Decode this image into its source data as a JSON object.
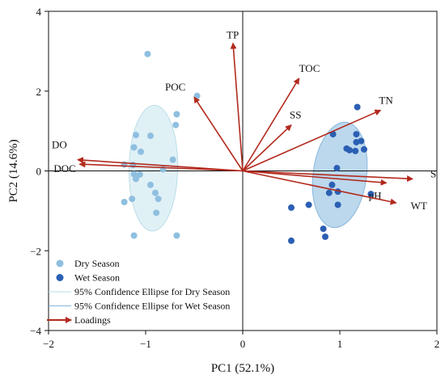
{
  "chart_data": {
    "type": "scatter",
    "xlabel": "PC1 (52.1%)",
    "ylabel": "PC2 (14.6%)",
    "xlim": [
      -2,
      2
    ],
    "ylim": [
      -4,
      4
    ],
    "xticks": [
      -2,
      -1,
      0,
      1,
      2
    ],
    "yticks": [
      -4,
      -2,
      0,
      2,
      4
    ],
    "xtick_labels": [
      "−2",
      "−1",
      "0",
      "1",
      "2"
    ],
    "ytick_labels": [
      "−4",
      "−2",
      "0",
      "2",
      "4"
    ],
    "grid": false,
    "legend_position": "bottom-left",
    "series": [
      {
        "name": "Dry Season",
        "color": "#8fbfe0",
        "points": [
          [
            -0.98,
            2.93
          ],
          [
            -0.47,
            1.88
          ],
          [
            -0.68,
            1.42
          ],
          [
            -0.69,
            1.15
          ],
          [
            -1.1,
            0.9
          ],
          [
            -0.95,
            0.88
          ],
          [
            -1.12,
            0.59
          ],
          [
            -1.05,
            0.48
          ],
          [
            -0.72,
            0.28
          ],
          [
            -1.22,
            0.16
          ],
          [
            -1.13,
            0.15
          ],
          [
            -0.82,
            0.04
          ],
          [
            -1.12,
            -0.08
          ],
          [
            -1.06,
            -0.09
          ],
          [
            -1.1,
            -0.2
          ],
          [
            -0.95,
            -0.35
          ],
          [
            -0.9,
            -0.55
          ],
          [
            -1.14,
            -0.7
          ],
          [
            -0.87,
            -0.7
          ],
          [
            -1.22,
            -0.78
          ],
          [
            -0.89,
            -1.05
          ],
          [
            -1.12,
            -1.62
          ],
          [
            -0.68,
            -1.62
          ]
        ]
      },
      {
        "name": "Wet Season",
        "color": "#2b5fb3",
        "points": [
          [
            1.18,
            1.6
          ],
          [
            1.17,
            0.92
          ],
          [
            0.93,
            0.92
          ],
          [
            1.22,
            0.75
          ],
          [
            1.17,
            0.72
          ],
          [
            1.07,
            0.56
          ],
          [
            1.1,
            0.52
          ],
          [
            1.25,
            0.54
          ],
          [
            1.16,
            0.5
          ],
          [
            0.97,
            0.07
          ],
          [
            0.92,
            -0.35
          ],
          [
            0.98,
            -0.52
          ],
          [
            0.89,
            -0.55
          ],
          [
            1.32,
            -0.58
          ],
          [
            0.68,
            -0.85
          ],
          [
            0.98,
            -0.85
          ],
          [
            0.5,
            -0.92
          ],
          [
            0.83,
            -1.45
          ],
          [
            0.85,
            -1.65
          ],
          [
            0.5,
            -1.75
          ]
        ]
      }
    ],
    "ellipses": [
      {
        "name": "95% Confidence Ellipse for Dry Season",
        "color": "#c7e6ee",
        "cx": -0.92,
        "cy": 0.07,
        "rx": 3.15,
        "ry": 0.5,
        "angle_deg": 89.2
      },
      {
        "name": "95% Confidence Ellipse for Wet Season",
        "color": "#9fc8e6",
        "cx": 1.0,
        "cy": -0.1,
        "rx": 2.65,
        "ry": 0.55,
        "angle_deg": 84.0
      }
    ],
    "loadings": {
      "name": "Loadings",
      "color": "#b22a1d",
      "vectors": [
        {
          "label": "TP",
          "x": -0.1,
          "y": 3.2
        },
        {
          "label": "TOC",
          "x": 0.58,
          "y": 2.32
        },
        {
          "label": "POC",
          "x": -0.5,
          "y": 1.85
        },
        {
          "label": "TN",
          "x": 1.42,
          "y": 1.52
        },
        {
          "label": "SS",
          "x": 0.5,
          "y": 1.15
        },
        {
          "label": "DO",
          "x": -1.7,
          "y": 0.28
        },
        {
          "label": "DOC",
          "x": -1.68,
          "y": 0.17
        },
        {
          "label": "S",
          "x": 1.75,
          "y": -0.2
        },
        {
          "label": "pH",
          "x": 1.48,
          "y": -0.3
        },
        {
          "label": "WT",
          "x": 1.58,
          "y": -0.8
        }
      ]
    }
  }
}
